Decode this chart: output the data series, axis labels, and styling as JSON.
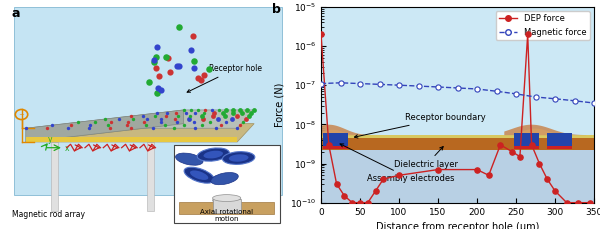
{
  "dep_x": [
    0,
    10,
    20,
    30,
    40,
    50,
    60,
    70,
    80,
    100,
    150,
    200,
    215,
    230,
    245,
    255,
    265,
    270,
    280,
    290,
    300,
    315,
    330,
    345
  ],
  "dep_y": [
    2e-06,
    3e-09,
    3e-10,
    1.5e-10,
    1e-10,
    1e-10,
    1e-10,
    2e-10,
    4e-10,
    5e-10,
    7e-10,
    7e-10,
    5e-10,
    3e-09,
    2e-09,
    1.5e-09,
    2e-06,
    3e-09,
    1e-09,
    4e-10,
    2e-10,
    1e-10,
    1e-10,
    1e-10
  ],
  "mag_x": [
    0,
    25,
    50,
    75,
    100,
    125,
    150,
    175,
    200,
    225,
    250,
    275,
    300,
    325,
    350
  ],
  "mag_y": [
    1.1e-07,
    1.15e-07,
    1.1e-07,
    1.05e-07,
    1e-07,
    9.5e-08,
    9e-08,
    8.5e-08,
    8e-08,
    7e-08,
    6e-08,
    5e-08,
    4.5e-08,
    4e-08,
    3.5e-08
  ],
  "ylim_low": 1e-10,
  "ylim_high": 1e-05,
  "xlim_low": 0,
  "xlim_high": 350,
  "xlabel": "Distance from receptor hole (μm)",
  "ylabel": "Force (N)",
  "fluid_color": "#cce8f5",
  "brown_color": "#c07838",
  "yellow_color": "#e8d870",
  "light_blue_base": "#b8d8e8",
  "electrode_blue": "#2244aa",
  "electrode_red": "#cc3333",
  "hump_color": "#d4956a",
  "dep_color": "#cc2222",
  "mag_color": "#3344bb",
  "label_a": "a",
  "label_b": "b"
}
